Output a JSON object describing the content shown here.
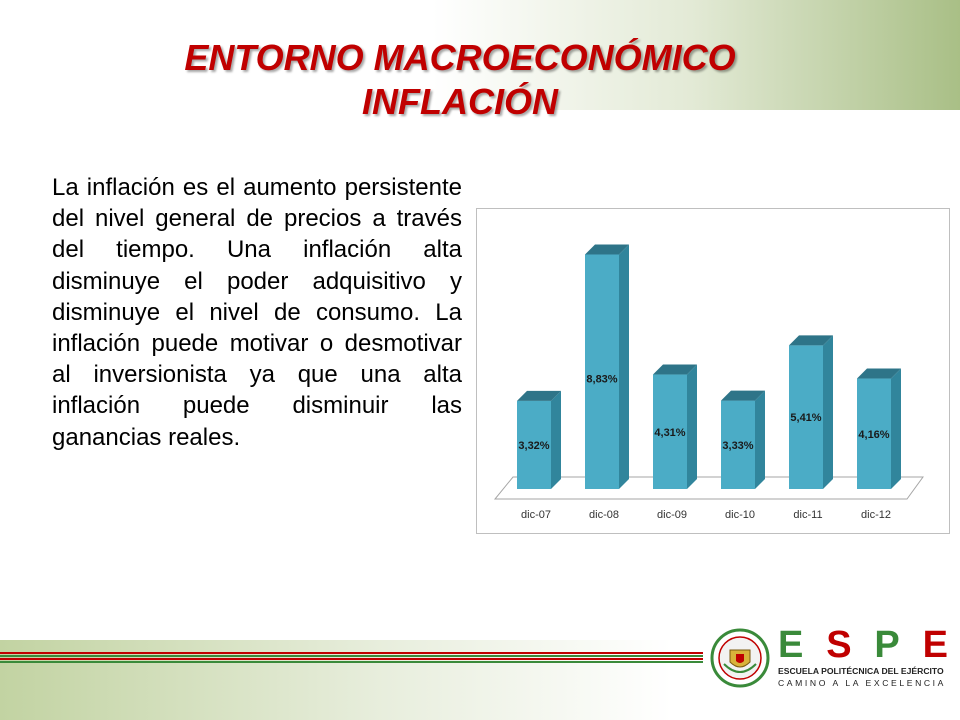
{
  "slide": {
    "title_line1": "ENTORNO MACROECONÓMICO",
    "title_line2": "INFLACIÓN",
    "body": "La inflación es el aumento persistente del nivel general de precios a través del tiempo. Una inflación alta disminuye el poder adquisitivo y disminuye el nivel de consumo. La inflación puede motivar o desmotivar al inversionista ya que una alta inflación puede disminuir las ganancias reales."
  },
  "chart_data": {
    "type": "bar",
    "categories": [
      "dic-07",
      "dic-08",
      "dic-09",
      "dic-10",
      "dic-11",
      "dic-12"
    ],
    "values": [
      3.32,
      8.83,
      4.31,
      3.33,
      5.41,
      4.16
    ],
    "data_labels": [
      "3,32%",
      "8,83%",
      "4,31%",
      "3,33%",
      "5,41%",
      "4,16%"
    ],
    "ylim": [
      0,
      9.0
    ],
    "grid": false,
    "legend": "none",
    "bar_color": "#4bacc6",
    "bar_side_color": "#31859c",
    "bar_top_color": "#2e7488"
  },
  "logo": {
    "letters": [
      "E",
      "S",
      "P",
      "E"
    ],
    "school": "ESCUELA POLITÉCNICA DEL EJÉRCITO",
    "motto": "CAMINO A LA EXCELENCIA",
    "seal_icon": "espe-seal-icon"
  },
  "colors": {
    "title": "#c00000",
    "stripe_red": "#c00000",
    "stripe_green": "#3a8a3a"
  }
}
